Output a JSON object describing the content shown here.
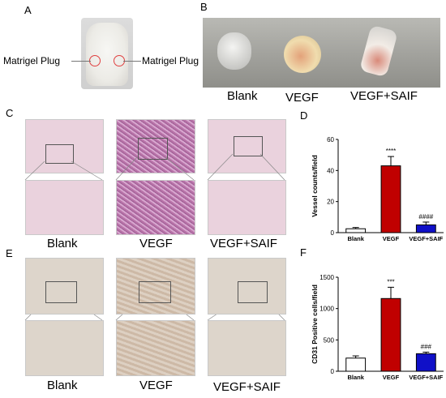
{
  "panels": {
    "a": {
      "letter": "A",
      "left_label": "Matrigel Plug",
      "right_label": "Matrigel Plug"
    },
    "b": {
      "letter": "B",
      "labels": [
        "Blank",
        "VEGF",
        "VEGF+SAIF"
      ]
    },
    "c": {
      "letter": "C",
      "labels": [
        "Blank",
        "VEGF",
        "VEGF+SAIF"
      ]
    },
    "d": {
      "letter": "D"
    },
    "e": {
      "letter": "E",
      "labels": [
        "Blank",
        "VEGF",
        "VEGF+SAIF"
      ]
    },
    "f": {
      "letter": "F"
    }
  },
  "colors": {
    "blank": "#ffffff",
    "vegf": "#c00000",
    "vegf_saif": "#1010c8"
  },
  "chart_data": [
    {
      "type": "bar",
      "panel": "D",
      "ylabel": "Vessel counts/field",
      "categories": [
        "Blank",
        "VEGF",
        "VEGF+SAIF"
      ],
      "values": [
        2.5,
        43,
        5
      ],
      "errors": [
        0.8,
        6,
        1.8
      ],
      "annotations": [
        "",
        "****",
        "####"
      ],
      "ylim": [
        0,
        60
      ],
      "yticks": [
        "0",
        "20",
        "40",
        "60"
      ]
    },
    {
      "type": "bar",
      "panel": "F",
      "ylabel": "CD31 Positive cells/field",
      "categories": [
        "Blank",
        "VEGF",
        "VEGF+SAIF"
      ],
      "values": [
        210,
        1160,
        280
      ],
      "errors": [
        35,
        180,
        25
      ],
      "annotations": [
        "",
        "***",
        "###"
      ],
      "ylim": [
        0,
        1500
      ],
      "yticks": [
        "0",
        "500",
        "1000",
        "1500"
      ]
    }
  ]
}
